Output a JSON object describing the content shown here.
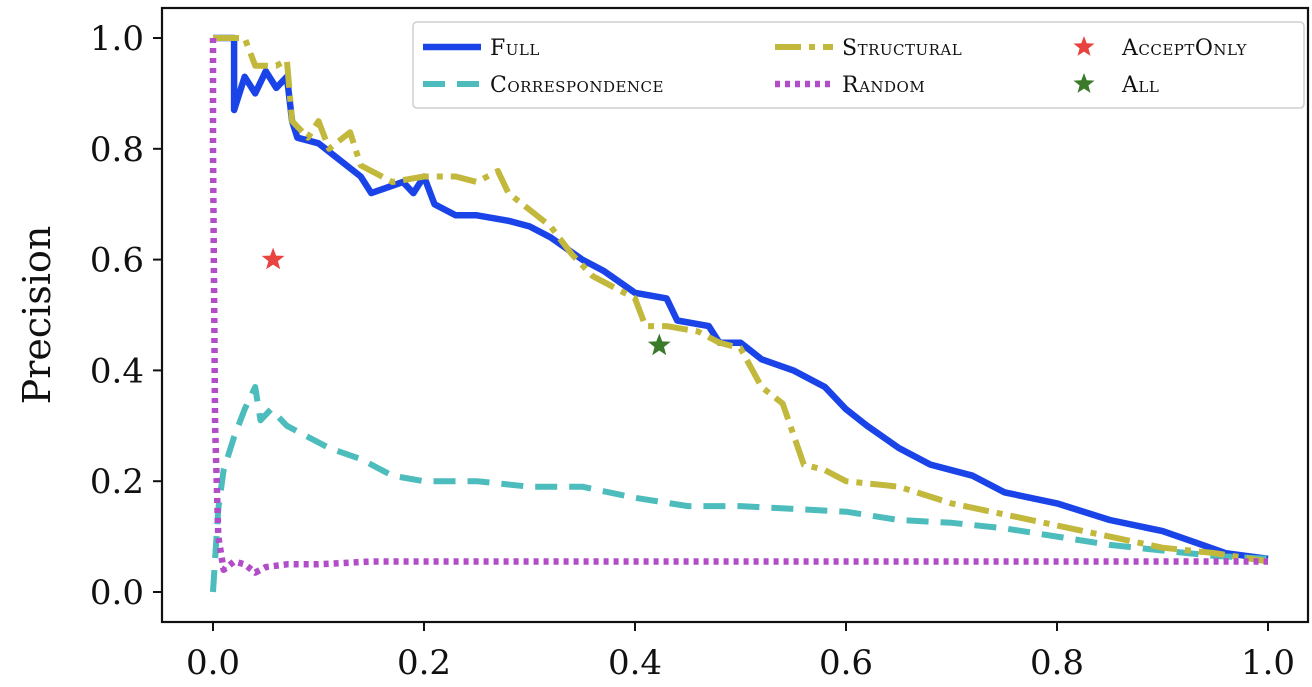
{
  "chart_data": {
    "type": "line",
    "xlabel": "",
    "ylabel": "Precision",
    "xlim": [
      0.0,
      1.0
    ],
    "ylim": [
      0.0,
      1.0
    ],
    "xticks": [
      "0.0",
      "0.2",
      "0.4",
      "0.6",
      "0.8",
      "1.0"
    ],
    "yticks": [
      "0.0",
      "0.2",
      "0.4",
      "0.6",
      "0.8",
      "1.0"
    ],
    "grid": false,
    "legend_position": "top-right",
    "series": [
      {
        "name": "Full",
        "style": "solid",
        "color": "#1a44e8",
        "points": [
          [
            0.0,
            1.0
          ],
          [
            0.02,
            1.0
          ],
          [
            0.02,
            0.87
          ],
          [
            0.03,
            0.93
          ],
          [
            0.04,
            0.9
          ],
          [
            0.05,
            0.94
          ],
          [
            0.06,
            0.91
          ],
          [
            0.07,
            0.93
          ],
          [
            0.075,
            0.85
          ],
          [
            0.08,
            0.82
          ],
          [
            0.1,
            0.81
          ],
          [
            0.12,
            0.78
          ],
          [
            0.14,
            0.75
          ],
          [
            0.15,
            0.72
          ],
          [
            0.18,
            0.74
          ],
          [
            0.19,
            0.72
          ],
          [
            0.2,
            0.75
          ],
          [
            0.21,
            0.7
          ],
          [
            0.23,
            0.68
          ],
          [
            0.25,
            0.68
          ],
          [
            0.28,
            0.67
          ],
          [
            0.3,
            0.66
          ],
          [
            0.32,
            0.64
          ],
          [
            0.35,
            0.6
          ],
          [
            0.37,
            0.58
          ],
          [
            0.4,
            0.54
          ],
          [
            0.43,
            0.53
          ],
          [
            0.44,
            0.49
          ],
          [
            0.47,
            0.48
          ],
          [
            0.48,
            0.45
          ],
          [
            0.5,
            0.45
          ],
          [
            0.52,
            0.42
          ],
          [
            0.55,
            0.4
          ],
          [
            0.58,
            0.37
          ],
          [
            0.6,
            0.33
          ],
          [
            0.62,
            0.3
          ],
          [
            0.65,
            0.26
          ],
          [
            0.68,
            0.23
          ],
          [
            0.72,
            0.21
          ],
          [
            0.75,
            0.18
          ],
          [
            0.8,
            0.16
          ],
          [
            0.85,
            0.13
          ],
          [
            0.9,
            0.11
          ],
          [
            0.93,
            0.09
          ],
          [
            0.96,
            0.07
          ],
          [
            1.0,
            0.06
          ]
        ]
      },
      {
        "name": "Correspondence",
        "style": "dashed",
        "color": "#4cbcbc",
        "points": [
          [
            0.0,
            0.0
          ],
          [
            0.005,
            0.15
          ],
          [
            0.01,
            0.22
          ],
          [
            0.02,
            0.28
          ],
          [
            0.03,
            0.33
          ],
          [
            0.04,
            0.37
          ],
          [
            0.045,
            0.31
          ],
          [
            0.055,
            0.33
          ],
          [
            0.07,
            0.3
          ],
          [
            0.09,
            0.28
          ],
          [
            0.11,
            0.26
          ],
          [
            0.14,
            0.24
          ],
          [
            0.17,
            0.21
          ],
          [
            0.2,
            0.2
          ],
          [
            0.25,
            0.2
          ],
          [
            0.3,
            0.19
          ],
          [
            0.35,
            0.19
          ],
          [
            0.4,
            0.17
          ],
          [
            0.45,
            0.155
          ],
          [
            0.5,
            0.155
          ],
          [
            0.55,
            0.15
          ],
          [
            0.6,
            0.145
          ],
          [
            0.65,
            0.13
          ],
          [
            0.7,
            0.125
          ],
          [
            0.75,
            0.115
          ],
          [
            0.8,
            0.1
          ],
          [
            0.85,
            0.085
          ],
          [
            0.9,
            0.075
          ],
          [
            0.95,
            0.065
          ],
          [
            1.0,
            0.06
          ]
        ]
      },
      {
        "name": "Structural",
        "style": "dash-dot",
        "color": "#c2b83c",
        "points": [
          [
            0.0,
            1.0
          ],
          [
            0.02,
            1.0
          ],
          [
            0.03,
            1.0
          ],
          [
            0.04,
            0.95
          ],
          [
            0.06,
            0.95
          ],
          [
            0.07,
            0.96
          ],
          [
            0.075,
            0.85
          ],
          [
            0.09,
            0.82
          ],
          [
            0.1,
            0.85
          ],
          [
            0.11,
            0.8
          ],
          [
            0.13,
            0.83
          ],
          [
            0.14,
            0.77
          ],
          [
            0.17,
            0.74
          ],
          [
            0.2,
            0.75
          ],
          [
            0.23,
            0.75
          ],
          [
            0.25,
            0.74
          ],
          [
            0.27,
            0.76
          ],
          [
            0.28,
            0.72
          ],
          [
            0.3,
            0.69
          ],
          [
            0.32,
            0.66
          ],
          [
            0.34,
            0.61
          ],
          [
            0.36,
            0.57
          ],
          [
            0.38,
            0.55
          ],
          [
            0.4,
            0.53
          ],
          [
            0.41,
            0.48
          ],
          [
            0.43,
            0.48
          ],
          [
            0.46,
            0.47
          ],
          [
            0.48,
            0.45
          ],
          [
            0.5,
            0.44
          ],
          [
            0.52,
            0.37
          ],
          [
            0.54,
            0.34
          ],
          [
            0.56,
            0.23
          ],
          [
            0.58,
            0.22
          ],
          [
            0.6,
            0.2
          ],
          [
            0.65,
            0.19
          ],
          [
            0.7,
            0.16
          ],
          [
            0.75,
            0.14
          ],
          [
            0.8,
            0.12
          ],
          [
            0.85,
            0.1
          ],
          [
            0.9,
            0.08
          ],
          [
            0.95,
            0.07
          ],
          [
            1.0,
            0.055
          ]
        ]
      },
      {
        "name": "Random",
        "style": "dotted",
        "color": "#b24cc8",
        "points": [
          [
            0.0,
            1.0
          ],
          [
            0.0,
            0.8
          ],
          [
            0.002,
            0.3
          ],
          [
            0.005,
            0.1
          ],
          [
            0.01,
            0.04
          ],
          [
            0.02,
            0.055
          ],
          [
            0.03,
            0.05
          ],
          [
            0.04,
            0.035
          ],
          [
            0.05,
            0.045
          ],
          [
            0.07,
            0.05
          ],
          [
            0.1,
            0.05
          ],
          [
            0.15,
            0.055
          ],
          [
            0.2,
            0.055
          ],
          [
            0.3,
            0.055
          ],
          [
            0.4,
            0.055
          ],
          [
            0.5,
            0.055
          ],
          [
            0.6,
            0.055
          ],
          [
            0.7,
            0.055
          ],
          [
            0.8,
            0.055
          ],
          [
            0.9,
            0.055
          ],
          [
            1.0,
            0.055
          ]
        ]
      }
    ],
    "markers": [
      {
        "name": "AcceptOnly",
        "x": 0.057,
        "y": 0.6,
        "color": "#e8433e",
        "shape": "star"
      },
      {
        "name": "All",
        "x": 0.423,
        "y": 0.445,
        "color": "#3a7a2a",
        "shape": "star"
      }
    ]
  }
}
